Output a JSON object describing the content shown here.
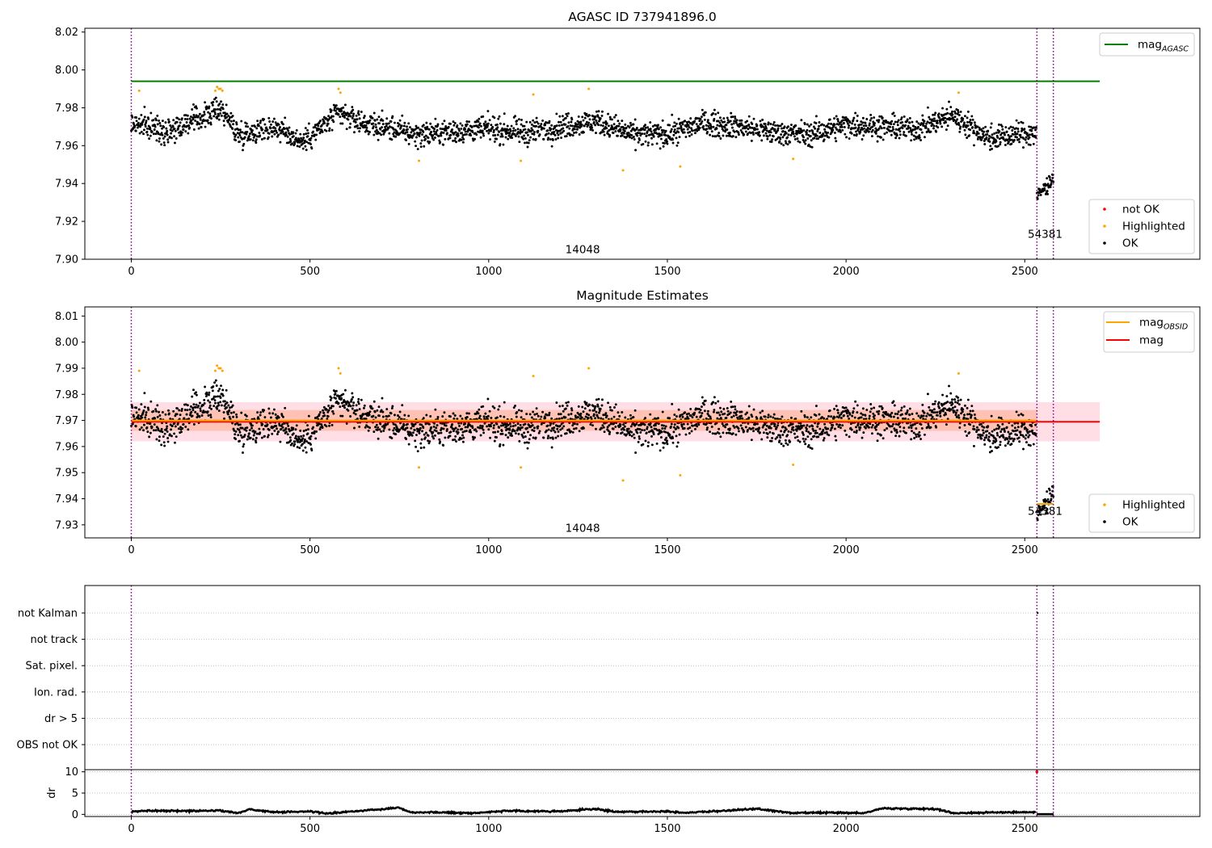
{
  "colors": {
    "ok": "#000000",
    "highlighted": "#ffa500",
    "not_ok": "#ff0000",
    "mag_agasc_line": "#008000",
    "mag_line": "#ff0000",
    "mag_obsid_line": "#ffa500",
    "band_outer": "#ffc0cb",
    "band_inner": "#ffa07a",
    "obs_boundary": "#800080",
    "grid": "#b0b0b0"
  },
  "chart_data": [
    {
      "id": "panel1",
      "type": "scatter",
      "title": "AGASC ID 737941896.0",
      "xlim": [
        -130,
        2990
      ],
      "ylim": [
        7.9,
        8.022
      ],
      "yticks": [
        7.9,
        7.92,
        7.94,
        7.96,
        7.98,
        8.0,
        8.02
      ],
      "ytick_labels": [
        "7.90",
        "7.92",
        "7.94",
        "7.96",
        "7.98",
        "8.00",
        "8.02"
      ],
      "xticks": [
        0,
        500,
        1000,
        1500,
        2000,
        2500
      ],
      "xtick_labels": [
        "0",
        "500",
        "1000",
        "1500",
        "2000",
        "2500"
      ],
      "obs_boundaries": [
        0,
        2534,
        2580
      ],
      "observations": [
        {
          "label": "14048",
          "x": 1263,
          "y": 7.905
        },
        {
          "label": "54381",
          "x": 2557,
          "y": 7.913
        }
      ],
      "lines": [
        {
          "name": "mag_AGASC",
          "y": 7.994,
          "x": [
            0,
            2710
          ]
        }
      ],
      "series": [
        {
          "name": "OK",
          "kind": "ok",
          "segments": [
            {
              "x_start": 0,
              "x_end": 2532,
              "knots": [
                [
                  0,
                  7.972
                ],
                [
                  100,
                  7.968
                ],
                [
                  200,
                  7.975
                ],
                [
                  250,
                  7.98
                ],
                [
                  300,
                  7.966
                ],
                [
                  400,
                  7.97
                ],
                [
                  480,
                  7.962
                ],
                [
                  520,
                  7.968
                ],
                [
                  580,
                  7.977
                ],
                [
                  650,
                  7.972
                ],
                [
                  800,
                  7.966
                ],
                [
                  1000,
                  7.969
                ],
                [
                  1100,
                  7.967
                ],
                [
                  1300,
                  7.973
                ],
                [
                  1400,
                  7.966
                ],
                [
                  1500,
                  7.966
                ],
                [
                  1600,
                  7.972
                ],
                [
                  1700,
                  7.97
                ],
                [
                  1800,
                  7.967
                ],
                [
                  1900,
                  7.966
                ],
                [
                  2000,
                  7.971
                ],
                [
                  2100,
                  7.97
                ],
                [
                  2200,
                  7.969
                ],
                [
                  2300,
                  7.976
                ],
                [
                  2400,
                  7.964
                ],
                [
                  2532,
                  7.967
                ]
              ],
              "noise": 0.0045
            },
            {
              "x_start": 2534,
              "x_end": 2580,
              "knots": [
                [
                  2534,
                  7.933
                ],
                [
                  2580,
                  7.943
                ]
              ],
              "noise": 0.003
            }
          ]
        },
        {
          "name": "Highlighted",
          "kind": "highlighted",
          "points": [
            [
              22,
              7.989
            ],
            [
              235,
              7.989
            ],
            [
              240,
              7.991
            ],
            [
              245,
              7.99
            ],
            [
              250,
              7.99
            ],
            [
              255,
              7.989
            ],
            [
              580,
              7.99
            ],
            [
              585,
              7.988
            ],
            [
              805,
              7.952
            ],
            [
              1090,
              7.952
            ],
            [
              1125,
              7.987
            ],
            [
              1280,
              7.99
            ],
            [
              1376,
              7.947
            ],
            [
              1536,
              7.949
            ],
            [
              1852,
              7.953
            ],
            [
              2315,
              7.988
            ]
          ]
        },
        {
          "name": "not OK",
          "kind": "not_ok",
          "points": []
        }
      ],
      "legends": [
        {
          "position": "top-right",
          "entries": [
            {
              "label": "mag",
              "sub": "AGASC",
              "kind": "line",
              "color_key": "mag_agasc_line"
            }
          ]
        },
        {
          "position": "bottom-right",
          "entries": [
            {
              "label": "not OK",
              "kind": "dot",
              "color_key": "not_ok"
            },
            {
              "label": "Highlighted",
              "kind": "dot",
              "color_key": "highlighted"
            },
            {
              "label": "OK",
              "kind": "dot",
              "color_key": "ok"
            }
          ]
        }
      ]
    },
    {
      "id": "panel2",
      "type": "scatter",
      "title": "Magnitude Estimates",
      "xlim": [
        -130,
        2990
      ],
      "ylim": [
        7.925,
        8.0135
      ],
      "yticks": [
        7.93,
        7.94,
        7.95,
        7.96,
        7.97,
        7.98,
        7.99,
        8.0,
        8.01
      ],
      "ytick_labels": [
        "7.93",
        "7.94",
        "7.95",
        "7.96",
        "7.97",
        "7.98",
        "7.99",
        "8.00",
        "8.01"
      ],
      "xticks": [
        0,
        500,
        1000,
        1500,
        2000,
        2500
      ],
      "xtick_labels": [
        "0",
        "500",
        "1000",
        "1500",
        "2000",
        "2500"
      ],
      "obs_boundaries": [
        0,
        2534,
        2580
      ],
      "observations": [
        {
          "label": "14048",
          "x": 1263,
          "y": 7.9285
        },
        {
          "label": "54381",
          "x": 2557,
          "y": 7.935
        }
      ],
      "bands": [
        {
          "y": [
            7.962,
            7.977
          ],
          "x": [
            0,
            2710
          ],
          "color_key": "band_outer"
        },
        {
          "y": [
            7.966,
            7.974
          ],
          "x": [
            0,
            2534
          ],
          "color_key": "band_inner"
        }
      ],
      "lines": [
        {
          "name": "mag",
          "y": 7.9695,
          "x": [
            0,
            2710
          ],
          "color_key": "mag_line"
        },
        {
          "name": "mag_OBSID",
          "y": 7.97,
          "x": [
            0,
            2534
          ],
          "color_key": "mag_obsid_line"
        },
        {
          "name": "mag_OBSID",
          "y": 7.938,
          "x": [
            2534,
            2580
          ],
          "color_key": "mag_obsid_line"
        }
      ],
      "series": [
        {
          "name": "OK",
          "kind": "ok",
          "segments": [
            {
              "x_start": 0,
              "x_end": 2532,
              "knots": [
                [
                  0,
                  7.972
                ],
                [
                  100,
                  7.968
                ],
                [
                  200,
                  7.975
                ],
                [
                  250,
                  7.98
                ],
                [
                  300,
                  7.966
                ],
                [
                  400,
                  7.97
                ],
                [
                  480,
                  7.962
                ],
                [
                  520,
                  7.968
                ],
                [
                  580,
                  7.977
                ],
                [
                  650,
                  7.972
                ],
                [
                  800,
                  7.966
                ],
                [
                  1000,
                  7.969
                ],
                [
                  1100,
                  7.967
                ],
                [
                  1300,
                  7.973
                ],
                [
                  1400,
                  7.966
                ],
                [
                  1500,
                  7.966
                ],
                [
                  1600,
                  7.972
                ],
                [
                  1700,
                  7.97
                ],
                [
                  1800,
                  7.967
                ],
                [
                  1900,
                  7.966
                ],
                [
                  2000,
                  7.971
                ],
                [
                  2100,
                  7.97
                ],
                [
                  2200,
                  7.969
                ],
                [
                  2300,
                  7.976
                ],
                [
                  2400,
                  7.964
                ],
                [
                  2532,
                  7.967
                ]
              ],
              "noise": 0.0045
            },
            {
              "x_start": 2534,
              "x_end": 2580,
              "knots": [
                [
                  2534,
                  7.933
                ],
                [
                  2580,
                  7.943
                ]
              ],
              "noise": 0.003
            }
          ]
        },
        {
          "name": "Highlighted",
          "kind": "highlighted",
          "points": [
            [
              22,
              7.989
            ],
            [
              235,
              7.989
            ],
            [
              240,
              7.991
            ],
            [
              245,
              7.99
            ],
            [
              250,
              7.99
            ],
            [
              255,
              7.989
            ],
            [
              580,
              7.99
            ],
            [
              585,
              7.988
            ],
            [
              805,
              7.952
            ],
            [
              1090,
              7.952
            ],
            [
              1125,
              7.987
            ],
            [
              1280,
              7.99
            ],
            [
              1376,
              7.947
            ],
            [
              1536,
              7.949
            ],
            [
              1852,
              7.953
            ],
            [
              2315,
              7.988
            ]
          ]
        }
      ],
      "legends": [
        {
          "position": "top-right",
          "entries": [
            {
              "label": "mag",
              "sub": "OBSID",
              "kind": "line",
              "color_key": "mag_obsid_line"
            },
            {
              "label": "mag",
              "kind": "line",
              "color_key": "mag_line"
            }
          ]
        },
        {
          "position": "bottom-right",
          "entries": [
            {
              "label": "Highlighted",
              "kind": "dot",
              "color_key": "highlighted"
            },
            {
              "label": "OK",
              "kind": "dot",
              "color_key": "ok"
            }
          ]
        }
      ]
    },
    {
      "id": "panel3",
      "type": "scatter",
      "title": "",
      "xlim": [
        -130,
        2990
      ],
      "categories": [
        "not Kalman",
        "not track",
        "Sat. pixel.",
        "Ion. rad.",
        "dr > 5",
        "OBS not OK"
      ],
      "category_flags": [
        {
          "category": "not Kalman",
          "x": [
            2536
          ]
        }
      ],
      "obs_boundaries": [
        0,
        2534,
        2580
      ]
    },
    {
      "id": "panel4",
      "type": "line",
      "ylabel": "dr",
      "xlim": [
        -130,
        2990
      ],
      "ylim": [
        -0.5,
        10.5
      ],
      "yticks": [
        0,
        5,
        10
      ],
      "ytick_labels": [
        "0",
        "5",
        "10"
      ],
      "xticks": [
        0,
        500,
        1000,
        1500,
        2000,
        2500
      ],
      "xtick_labels": [
        "0",
        "500",
        "1000",
        "1500",
        "2000",
        "2500"
      ],
      "obs_boundaries": [
        0,
        2534,
        2580
      ],
      "dr_knots": [
        [
          0,
          0.6
        ],
        [
          50,
          0.9
        ],
        [
          150,
          0.8
        ],
        [
          250,
          0.9
        ],
        [
          300,
          0.3
        ],
        [
          330,
          1.2
        ],
        [
          400,
          0.5
        ],
        [
          500,
          0.7
        ],
        [
          550,
          0.2
        ],
        [
          650,
          0.9
        ],
        [
          750,
          1.6
        ],
        [
          780,
          0.5
        ],
        [
          850,
          0.5
        ],
        [
          950,
          0.3
        ],
        [
          1050,
          0.8
        ],
        [
          1200,
          0.7
        ],
        [
          1300,
          1.3
        ],
        [
          1350,
          0.6
        ],
        [
          1500,
          0.7
        ],
        [
          1550,
          0.4
        ],
        [
          1650,
          0.8
        ],
        [
          1750,
          1.3
        ],
        [
          1850,
          0.3
        ],
        [
          1950,
          0.4
        ],
        [
          2050,
          0.3
        ],
        [
          2100,
          1.4
        ],
        [
          2250,
          1.3
        ],
        [
          2300,
          0.3
        ],
        [
          2450,
          0.5
        ],
        [
          2530,
          0.5
        ]
      ],
      "dr_noise": 0.25,
      "dr_tail": {
        "x_start": 2536,
        "x_end": 2580,
        "value": 0.05
      },
      "dr_outlier": [
        2534,
        10
      ]
    }
  ]
}
